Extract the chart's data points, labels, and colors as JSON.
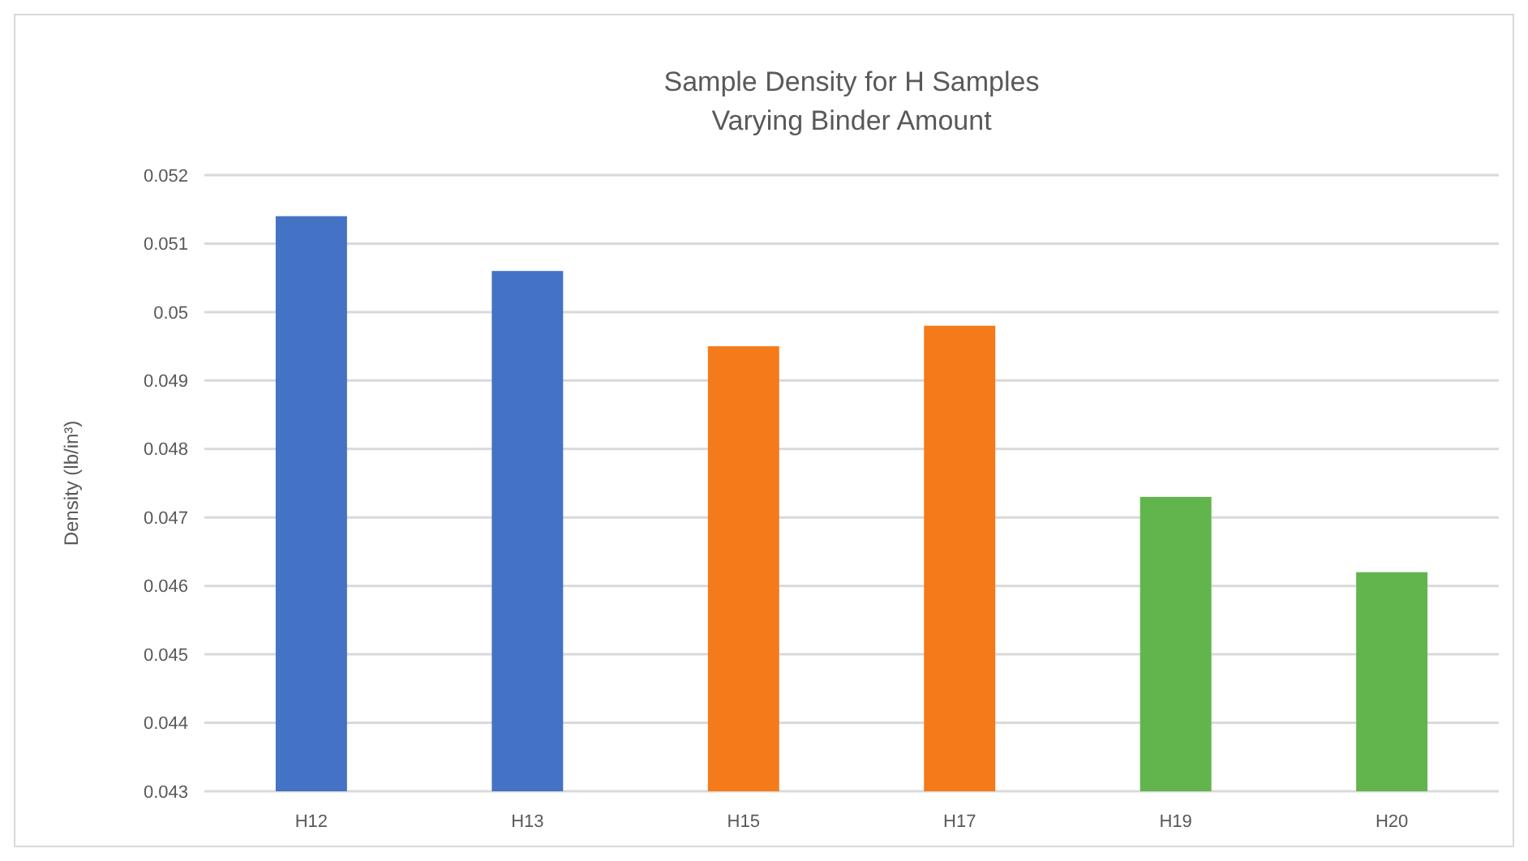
{
  "chart_data": {
    "type": "bar",
    "title": "Sample Density for H Samples",
    "subtitle": "Varying Binder Amount",
    "ylabel": "Density (lb/in³)",
    "categories": [
      "H12",
      "H13",
      "H15",
      "H17",
      "H19",
      "H20"
    ],
    "values": [
      0.0514,
      0.0506,
      0.0495,
      0.0498,
      0.0473,
      0.0462
    ],
    "colors": [
      "#4472c4",
      "#4472c4",
      "#f47a1a",
      "#f47a1a",
      "#62b44d",
      "#62b44d"
    ],
    "ylim": [
      0.043,
      0.052
    ],
    "yticks": [
      0.043,
      0.044,
      0.045,
      0.046,
      0.047,
      0.048,
      0.049,
      0.05,
      0.051,
      0.052
    ],
    "grid": "y"
  }
}
